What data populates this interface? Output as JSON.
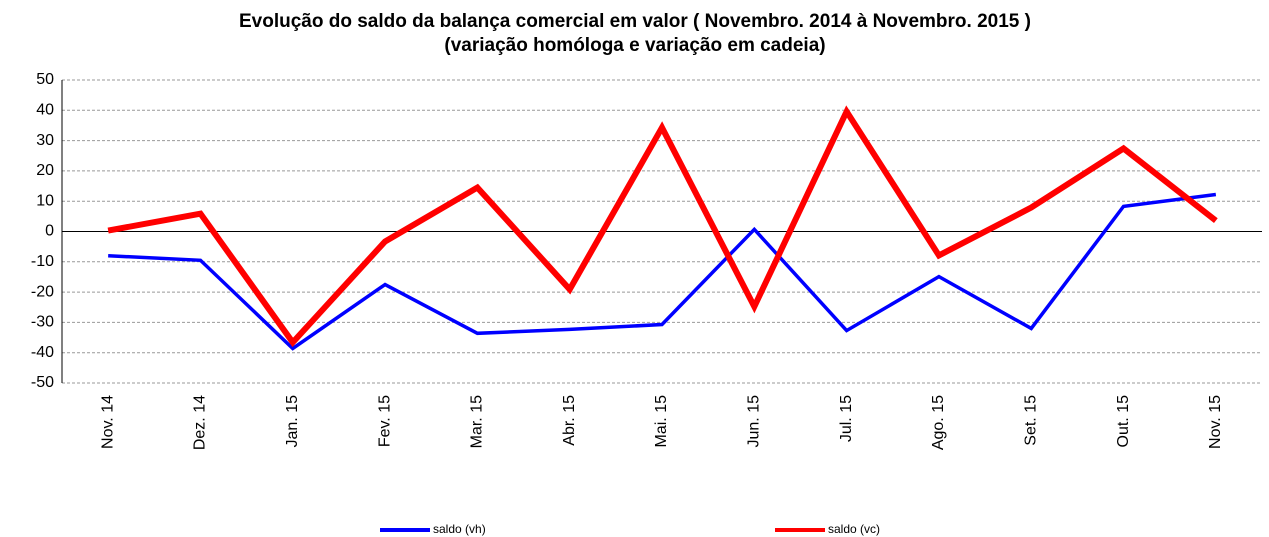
{
  "chart_data": {
    "type": "line",
    "title": "Evolução do saldo da balança comercial  em valor ( Novembro. 2014 à Novembro. 2015 )",
    "subtitle": "(variação homóloga e variação em cadeia)",
    "categories": [
      "Nov. 14",
      "Dez. 14",
      "Jan. 15",
      "Fev. 15",
      "Mar. 15",
      "Abr. 15",
      "Mai. 15",
      "Jun. 15",
      "Jul. 15",
      "Ago. 15",
      "Set. 15",
      "Out. 15",
      "Nov. 15"
    ],
    "series": [
      {
        "name": "saldo (vh)",
        "color": "#0000ff",
        "values": [
          -8,
          -9.5,
          -38.6,
          -17.5,
          -33.6,
          -32.3,
          -30.7,
          0.7,
          -32.7,
          -14.9,
          -32,
          8.3,
          12.2
        ]
      },
      {
        "name": "saldo (vc)",
        "color": "#ff0000",
        "values": [
          0.3,
          5.9,
          -36.6,
          -3.3,
          14.5,
          -19.1,
          34.3,
          -24.8,
          39.6,
          -7.9,
          7.9,
          27.4,
          3.6
        ]
      }
    ],
    "ylim": [
      -50,
      50
    ],
    "yticks": [
      -50,
      -40,
      -30,
      -20,
      -10,
      0,
      10,
      20,
      30,
      40,
      50
    ],
    "grid": true,
    "legend": "bottom"
  }
}
